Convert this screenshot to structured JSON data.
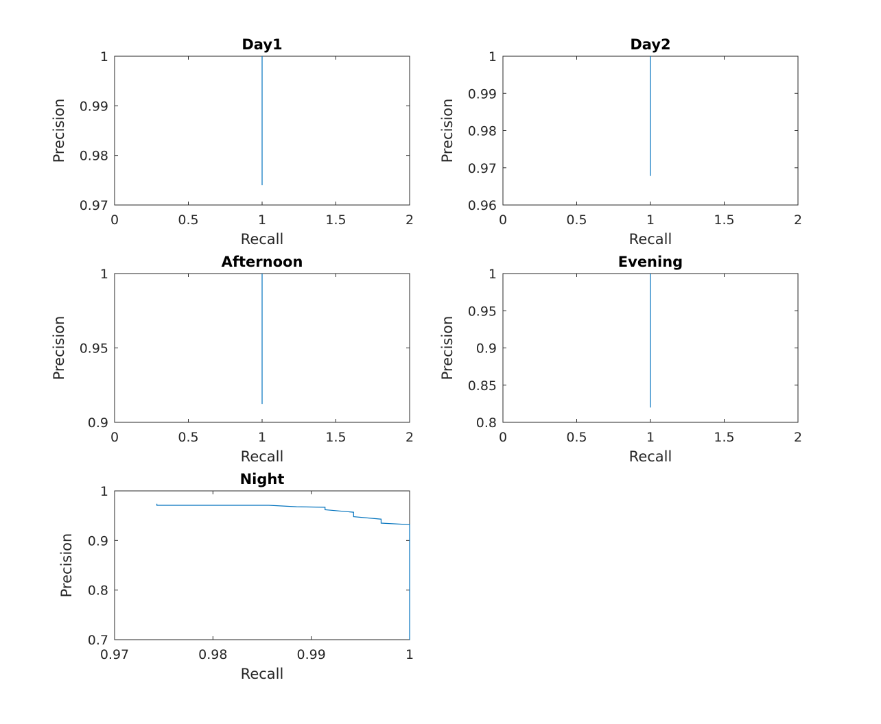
{
  "chart_data": [
    {
      "type": "line",
      "title": "Day1",
      "xlabel": "Recall",
      "ylabel": "Precision",
      "xlim": [
        0,
        2
      ],
      "ylim": [
        0.97,
        1
      ],
      "xticks": [
        0,
        0.5,
        1,
        1.5,
        2
      ],
      "xtick_labels": [
        "0",
        "0.5",
        "1",
        "1.5",
        "2"
      ],
      "yticks": [
        0.97,
        0.98,
        0.99,
        1
      ],
      "ytick_labels": [
        "0.97",
        "0.98",
        "0.99",
        "1"
      ],
      "grid": false,
      "color": "#0072BD",
      "series": [
        {
          "x": [
            1,
            1
          ],
          "y": [
            0.974,
            1
          ]
        }
      ]
    },
    {
      "type": "line",
      "title": "Day2",
      "xlabel": "Recall",
      "ylabel": "Precision",
      "xlim": [
        0,
        2
      ],
      "ylim": [
        0.96,
        1
      ],
      "xticks": [
        0,
        0.5,
        1,
        1.5,
        2
      ],
      "xtick_labels": [
        "0",
        "0.5",
        "1",
        "1.5",
        "2"
      ],
      "yticks": [
        0.96,
        0.97,
        0.98,
        0.99,
        1
      ],
      "ytick_labels": [
        "0.96",
        "0.97",
        "0.98",
        "0.99",
        "1"
      ],
      "grid": false,
      "color": "#0072BD",
      "series": [
        {
          "x": [
            1,
            1
          ],
          "y": [
            0.9678,
            1
          ]
        }
      ]
    },
    {
      "type": "line",
      "title": "Afternoon",
      "xlabel": "Recall",
      "ylabel": "Precision",
      "xlim": [
        0,
        2
      ],
      "ylim": [
        0.9,
        1
      ],
      "xticks": [
        0,
        0.5,
        1,
        1.5,
        2
      ],
      "xtick_labels": [
        "0",
        "0.5",
        "1",
        "1.5",
        "2"
      ],
      "yticks": [
        0.9,
        0.95,
        1
      ],
      "ytick_labels": [
        "0.9",
        "0.95",
        "1"
      ],
      "grid": false,
      "color": "#0072BD",
      "series": [
        {
          "x": [
            1,
            1
          ],
          "y": [
            0.9124,
            1
          ]
        }
      ]
    },
    {
      "type": "line",
      "title": "Evening",
      "xlabel": "Recall",
      "ylabel": "Precision",
      "xlim": [
        0,
        2
      ],
      "ylim": [
        0.8,
        1
      ],
      "xticks": [
        0,
        0.5,
        1,
        1.5,
        2
      ],
      "xtick_labels": [
        "0",
        "0.5",
        "1",
        "1.5",
        "2"
      ],
      "yticks": [
        0.8,
        0.85,
        0.9,
        0.95,
        1
      ],
      "ytick_labels": [
        "0.8",
        "0.85",
        "0.9",
        "0.95",
        "1"
      ],
      "grid": false,
      "color": "#0072BD",
      "series": [
        {
          "x": [
            1,
            1
          ],
          "y": [
            0.8199,
            1
          ]
        }
      ]
    },
    {
      "type": "line",
      "title": "Night",
      "xlabel": "Recall",
      "ylabel": "Precision",
      "xlim": [
        0.97,
        1
      ],
      "ylim": [
        0.7,
        1
      ],
      "xticks": [
        0.97,
        0.98,
        0.99,
        1
      ],
      "xtick_labels": [
        "0.97",
        "0.98",
        "0.99",
        "1"
      ],
      "yticks": [
        0.7,
        0.8,
        0.9,
        1
      ],
      "ytick_labels": [
        "0.7",
        "0.8",
        "0.9",
        "1"
      ],
      "grid": false,
      "color": "#0072BD",
      "series": [
        {
          "x": [
            0.9743,
            0.9743,
            0.9857,
            0.9885,
            0.9914,
            0.9914,
            0.9943,
            0.9943,
            0.9971,
            0.9971,
            1.0,
            1.0
          ],
          "y": [
            0.974,
            0.971,
            0.971,
            0.968,
            0.967,
            0.962,
            0.957,
            0.948,
            0.943,
            0.935,
            0.932,
            0.7
          ]
        }
      ]
    }
  ]
}
